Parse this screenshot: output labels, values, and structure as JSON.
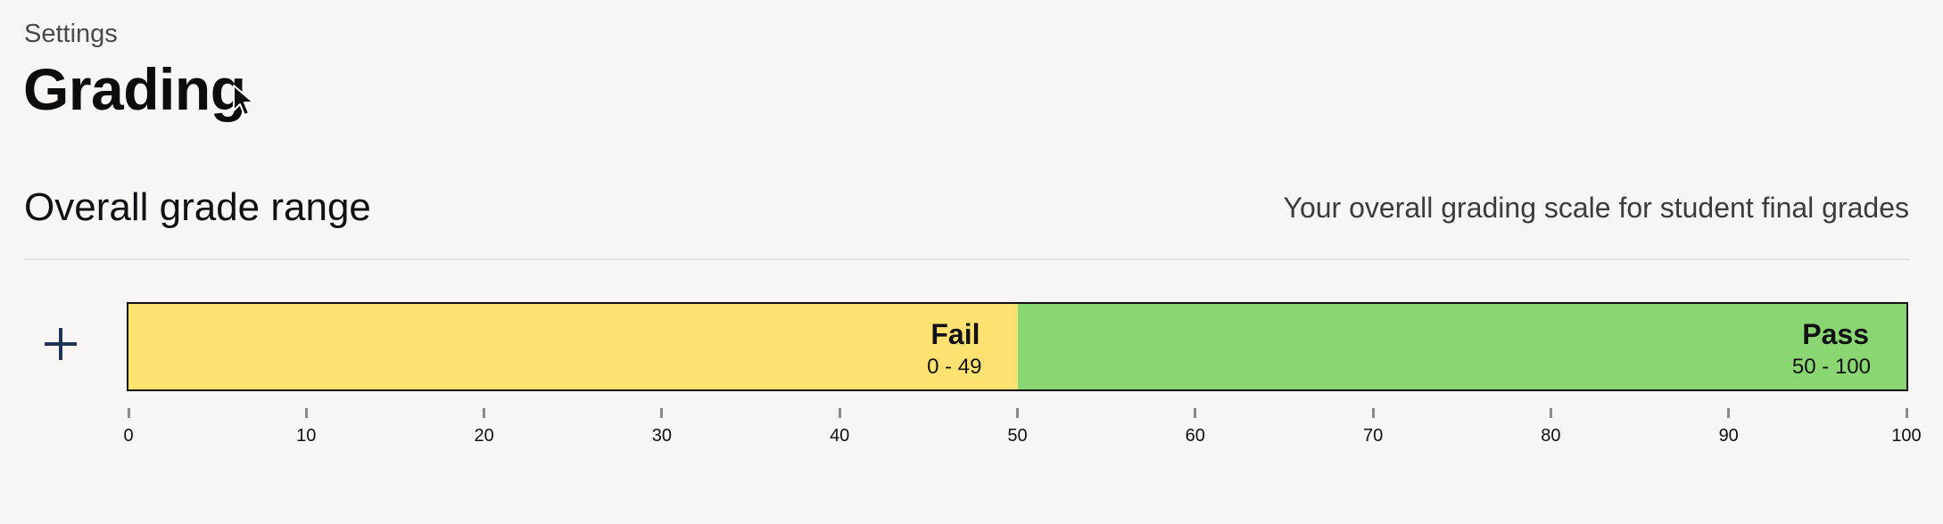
{
  "header": {
    "breadcrumb": "Settings",
    "title": "Grading"
  },
  "section": {
    "title": "Overall grade range",
    "description": "Your overall grading scale for student final grades"
  },
  "add_button": {
    "icon": "plus-icon",
    "color": "#1f3450"
  },
  "grade_scale": {
    "min": 0,
    "max": 100,
    "segments": [
      {
        "label": "Fail",
        "range": "0 - 49",
        "start": 0,
        "end": 50,
        "color": "#fde272"
      },
      {
        "label": "Pass",
        "range": "50 - 100",
        "start": 50,
        "end": 100,
        "color": "#89d672"
      }
    ],
    "ticks": [
      "0",
      "10",
      "20",
      "30",
      "40",
      "50",
      "60",
      "70",
      "80",
      "90",
      "100"
    ]
  }
}
